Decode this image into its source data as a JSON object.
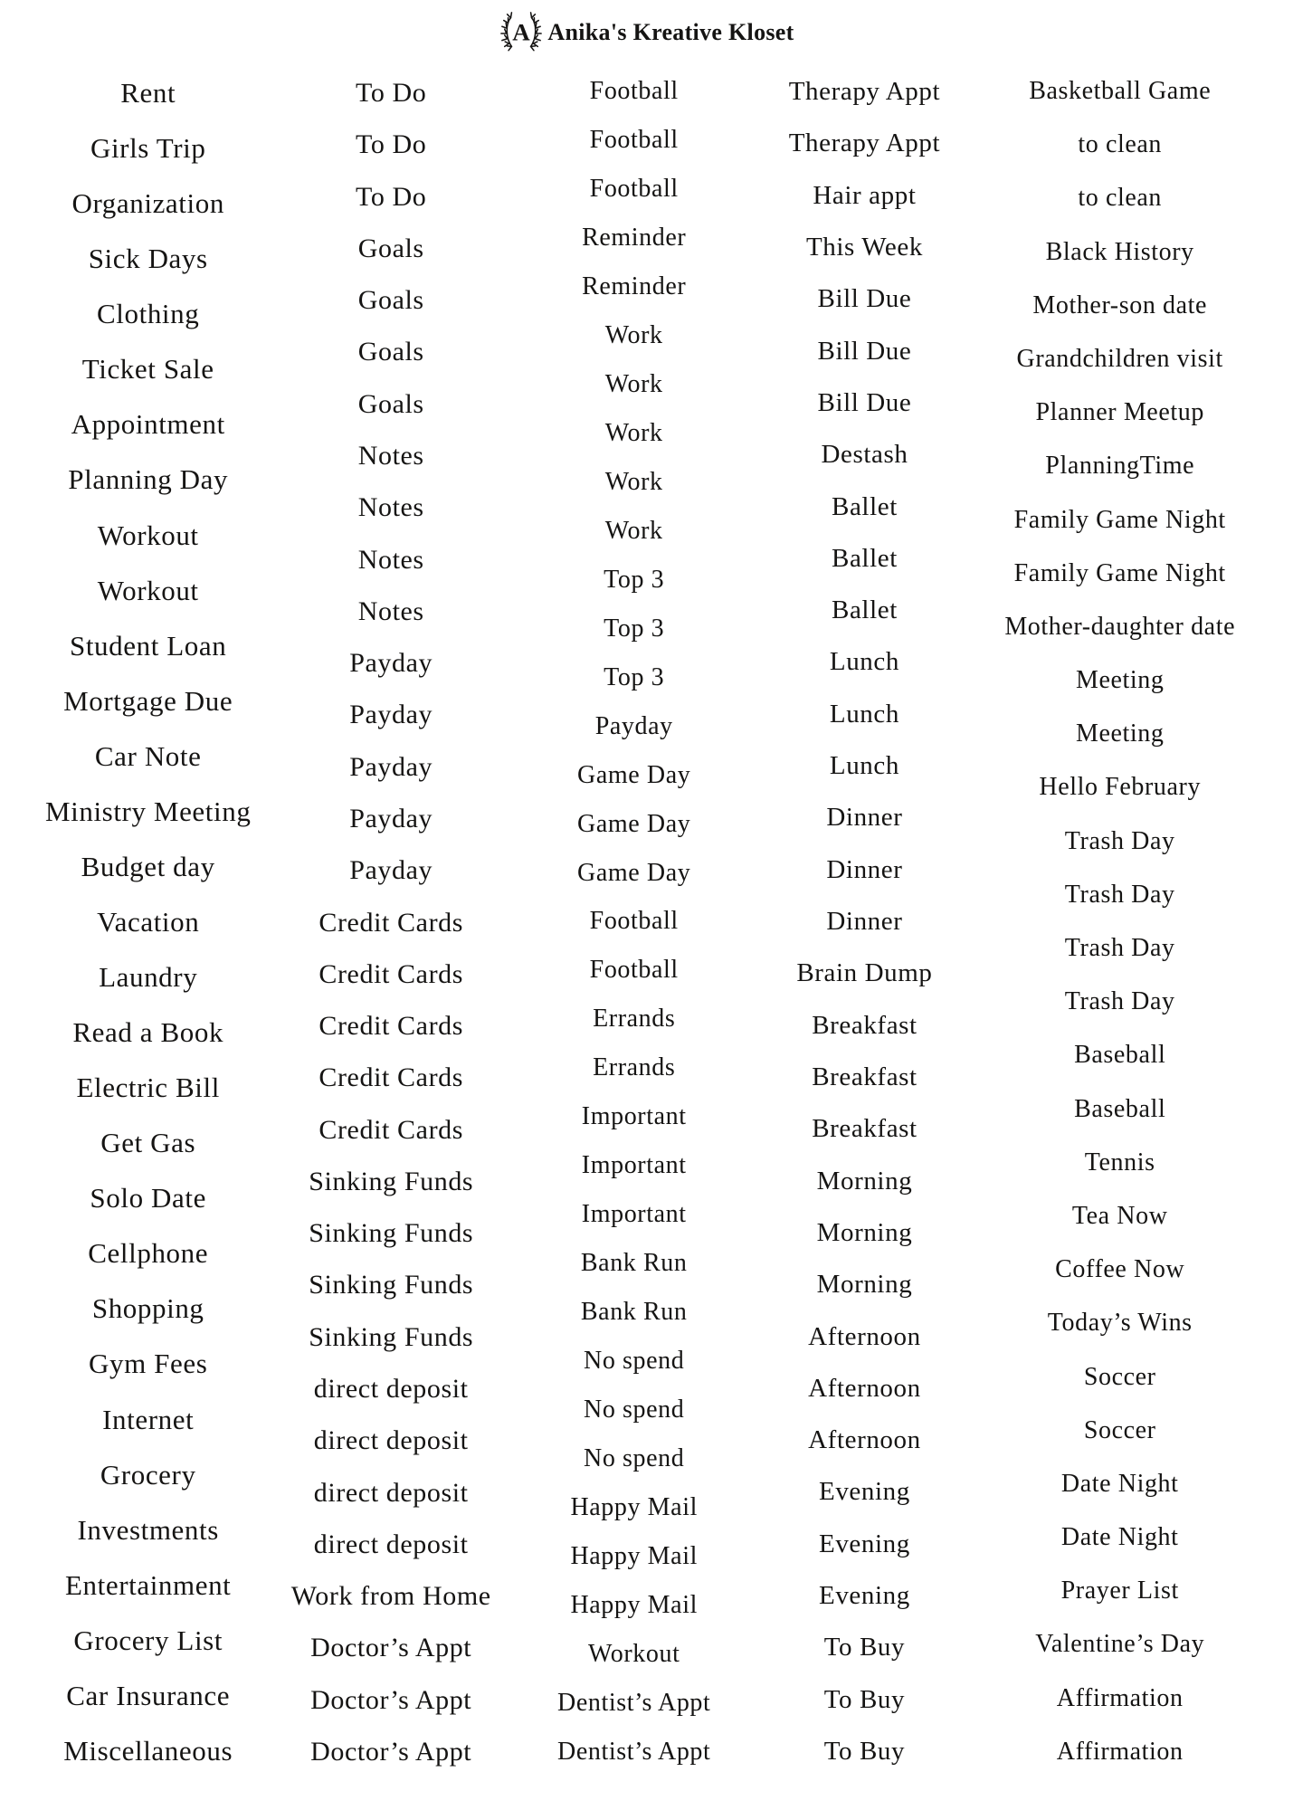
{
  "header": {
    "brand": "Anika's Kreative Kloset",
    "logo_letter": "A",
    "logo_icon": "laurel-wreath-icon"
  },
  "colors": {
    "background": "#ffffff",
    "text": "#151413"
  },
  "columns": [
    {
      "id": "column-1",
      "items": [
        "Rent",
        "Girls Trip",
        "Organization",
        "Sick Days",
        "Clothing",
        "Ticket Sale",
        "Appointment",
        "Planning Day",
        "Workout",
        "Workout",
        "Student Loan",
        "Mortgage Due",
        "Car Note",
        "Ministry Meeting",
        "Budget day",
        "Vacation",
        "Laundry",
        "Read a Book",
        "Electric Bill",
        "Get Gas",
        "Solo Date",
        "Cellphone",
        "Shopping",
        "Gym Fees",
        "Internet",
        "Grocery",
        "Investments",
        "Entertainment",
        "Grocery List",
        "Car Insurance",
        "Miscellaneous"
      ]
    },
    {
      "id": "column-2",
      "items": [
        "To Do",
        "To Do",
        "To Do",
        "Goals",
        "Goals",
        "Goals",
        "Goals",
        "Notes",
        "Notes",
        "Notes",
        "Notes",
        "Payday",
        "Payday",
        "Payday",
        "Payday",
        "Payday",
        "Credit Cards",
        "Credit Cards",
        "Credit Cards",
        "Credit Cards",
        "Credit Cards",
        "Sinking Funds",
        "Sinking Funds",
        "Sinking Funds",
        "Sinking Funds",
        "direct deposit",
        "direct deposit",
        "direct deposit",
        "direct deposit",
        "Work from Home",
        "Doctor’s Appt",
        "Doctor’s Appt",
        "Doctor’s Appt"
      ]
    },
    {
      "id": "column-3",
      "items": [
        "Football",
        "Football",
        "Football",
        "Reminder",
        "Reminder",
        "Work",
        "Work",
        "Work",
        "Work",
        "Work",
        "Top 3",
        "Top 3",
        "Top 3",
        "Payday",
        "Game Day",
        "Game Day",
        "Game Day",
        "Football",
        "Football",
        "Errands",
        "Errands",
        "Important",
        "Important",
        "Important",
        "Bank Run",
        "Bank Run",
        "No spend",
        "No spend",
        "No spend",
        "Happy Mail",
        "Happy Mail",
        "Happy Mail",
        "Workout",
        "Dentist’s Appt",
        "Dentist’s Appt"
      ]
    },
    {
      "id": "column-4",
      "items": [
        "Therapy Appt",
        "Therapy Appt",
        "Hair appt",
        "This Week",
        "Bill Due",
        "Bill Due",
        "Bill Due",
        "Destash",
        "Ballet",
        "Ballet",
        "Ballet",
        "Lunch",
        "Lunch",
        "Lunch",
        "Dinner",
        "Dinner",
        "Dinner",
        "Brain Dump",
        "Breakfast",
        "Breakfast",
        "Breakfast",
        "Morning",
        "Morning",
        "Morning",
        "Afternoon",
        "Afternoon",
        "Afternoon",
        "Evening",
        "Evening",
        "Evening",
        "To Buy",
        "To Buy",
        "To Buy"
      ]
    },
    {
      "id": "column-5",
      "items": [
        "Basketball Game",
        "to clean",
        "to clean",
        "Black History",
        "Mother-son date",
        "Grandchildren visit",
        "Planner Meetup",
        "PlanningTime",
        "Family Game Night",
        "Family Game Night",
        "Mother-daughter date",
        "Meeting",
        "Meeting",
        "Hello February",
        "Trash Day",
        "Trash Day",
        "Trash Day",
        "Trash Day",
        "Baseball",
        "Baseball",
        "Tennis",
        "Tea Now",
        "Coffee Now",
        "Today’s Wins",
        "Soccer",
        "Soccer",
        "Date Night",
        "Date Night",
        "Prayer List",
        "Valentine’s Day",
        "Affirmation",
        "Affirmation"
      ]
    }
  ]
}
